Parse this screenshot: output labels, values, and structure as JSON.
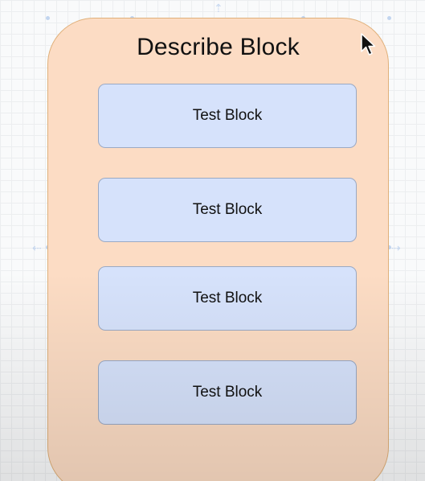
{
  "diagram": {
    "container": {
      "title": "Describe Block",
      "fill": "#fcdcc4",
      "border": "#e0b07a"
    },
    "blocks": [
      {
        "label": "Test Block"
      },
      {
        "label": "Test Block"
      },
      {
        "label": "Test Block"
      },
      {
        "label": "Test Block"
      }
    ],
    "block_fill": "#d6e2fb",
    "block_border": "#9aa9c4"
  },
  "icons": {
    "cursor": "mouse-pointer-icon"
  }
}
